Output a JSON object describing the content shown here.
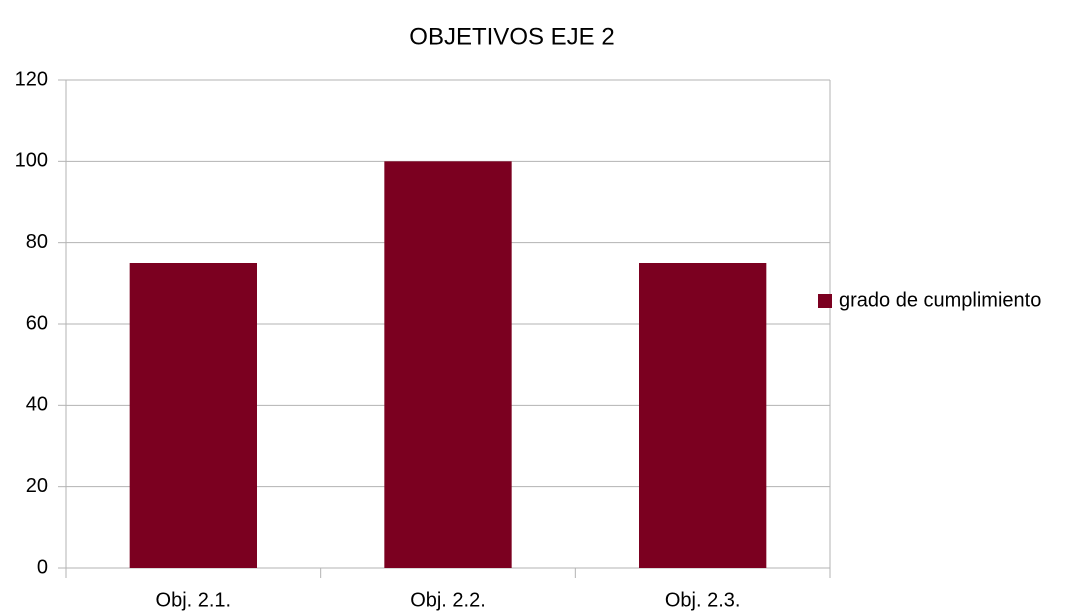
{
  "chart_data": {
    "type": "bar",
    "title": "OBJETIVOS EJE 2",
    "categories": [
      "Obj. 2.1.",
      "Obj. 2.2.",
      "Obj. 2.3."
    ],
    "series": [
      {
        "name": "grado de cumplimiento",
        "color": "#7b0020",
        "values": [
          75,
          100,
          75
        ]
      }
    ],
    "ylim": [
      0,
      120
    ],
    "yticks": [
      0,
      20,
      40,
      60,
      80,
      100,
      120
    ],
    "grid": true,
    "legend": "right"
  }
}
